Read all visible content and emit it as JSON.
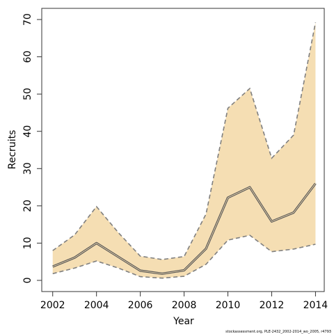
{
  "chart_data": {
    "type": "line",
    "xlabel": "Year",
    "ylabel": "Recruits",
    "x": [
      2002,
      2003,
      2004,
      2005,
      2006,
      2007,
      2008,
      2009,
      2010,
      2011,
      2012,
      2013,
      2014
    ],
    "xlim": [
      2001.5,
      2014.4
    ],
    "ylim": [
      -3,
      73
    ],
    "xticks": [
      2002,
      2004,
      2006,
      2008,
      2010,
      2012,
      2014
    ],
    "yticks": [
      0,
      10,
      20,
      30,
      40,
      50,
      60,
      70
    ],
    "series": [
      {
        "role": "estimate",
        "values": [
          3.7,
          6.1,
          10.0,
          6.3,
          2.6,
          1.8,
          2.7,
          8.5,
          22.2,
          25.0,
          15.8,
          18.2,
          26.0
        ]
      },
      {
        "role": "upper",
        "values": [
          8.0,
          12.2,
          19.8,
          12.8,
          6.5,
          5.6,
          6.4,
          17.8,
          46.2,
          51.5,
          32.8,
          39.0,
          69.2
        ]
      },
      {
        "role": "lower",
        "values": [
          1.8,
          3.3,
          5.2,
          3.3,
          1.0,
          0.6,
          1.1,
          4.3,
          10.8,
          12.1,
          7.7,
          8.4,
          9.7
        ]
      }
    ],
    "band_color": "#f5deb3",
    "line_color": "#555555",
    "band_edge_color": "#7f7f7f",
    "grid": false,
    "legend": "none"
  },
  "footer": {
    "text": "stockassessment.org, PLE-2432_2002-2014_wo_2005, r4793"
  }
}
